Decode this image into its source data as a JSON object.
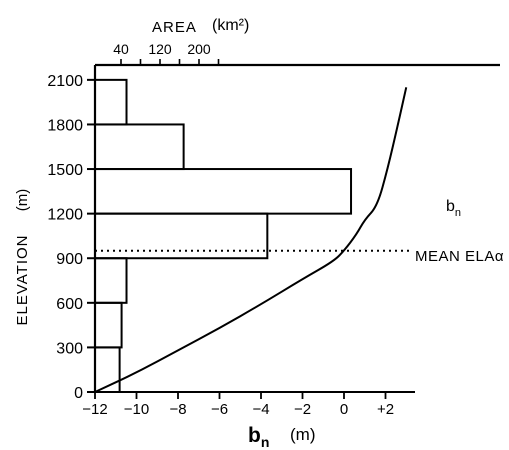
{
  "chart_data": {
    "type": "bar",
    "area_histogram": {
      "axis_title": "AREA",
      "axis_unit": "(km²)",
      "area_ticks": [
        40,
        120,
        200
      ],
      "xlim": [
        0,
        320
      ],
      "bins": [
        {
          "elev_from": 0,
          "elev_to": 300,
          "area": 25
        },
        {
          "elev_from": 300,
          "elev_to": 600,
          "area": 27
        },
        {
          "elev_from": 600,
          "elev_to": 900,
          "area": 32
        },
        {
          "elev_from": 900,
          "elev_to": 1200,
          "area": 175
        },
        {
          "elev_from": 1200,
          "elev_to": 1500,
          "area": 260
        },
        {
          "elev_from": 1500,
          "elev_to": 1800,
          "area": 90
        },
        {
          "elev_from": 1800,
          "elev_to": 2100,
          "area": 32
        }
      ]
    },
    "balance_curve": {
      "label": "b",
      "label_sub": "n",
      "xlim": [
        -12,
        5.5
      ],
      "x_ticks": [
        -12,
        -10,
        -8,
        -6,
        -4,
        -2,
        0,
        "+2"
      ],
      "points": [
        {
          "x": -12.0,
          "y": 0
        },
        {
          "x": -10.0,
          "y": 130
        },
        {
          "x": -8.0,
          "y": 280
        },
        {
          "x": -6.0,
          "y": 430
        },
        {
          "x": -4.0,
          "y": 590
        },
        {
          "x": -2.0,
          "y": 760
        },
        {
          "x": -0.5,
          "y": 880
        },
        {
          "x": 0.0,
          "y": 950
        },
        {
          "x": 0.6,
          "y": 1060
        },
        {
          "x": 1.0,
          "y": 1160
        },
        {
          "x": 1.6,
          "y": 1250
        },
        {
          "x": 2.1,
          "y": 1500
        },
        {
          "x": 2.6,
          "y": 1800
        },
        {
          "x": 3.0,
          "y": 2050
        }
      ]
    },
    "y_axis": {
      "title": "ELEVATION",
      "unit": "(m)",
      "ticks": [
        0,
        300,
        600,
        900,
        1200,
        1500,
        1800,
        2100
      ],
      "ylim": [
        0,
        2200
      ]
    },
    "x_axis": {
      "title": "b",
      "title_sub": "n",
      "unit": "(m)"
    },
    "ela_line": {
      "label": "MEAN ELAα",
      "elevation": 950
    }
  }
}
